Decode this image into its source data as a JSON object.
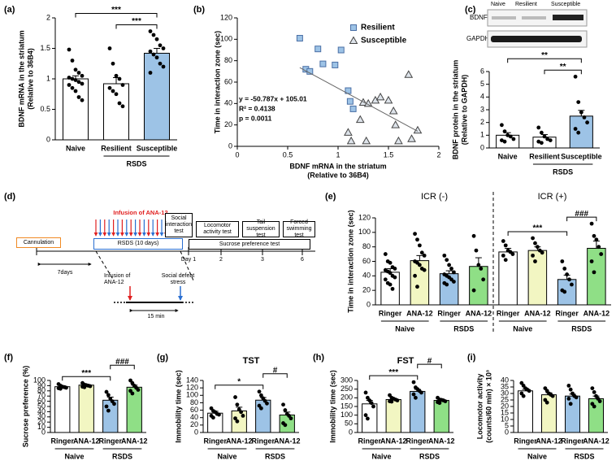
{
  "chart_data": [
    {
      "type": "bar",
      "label": "(a)",
      "ylabel": [
        "BDNF mRNA in the striatum",
        "(Relative to 36B4)"
      ],
      "categories": [
        "Naive",
        "Resilient",
        "Susceptible"
      ],
      "values": [
        1.0,
        0.92,
        1.42
      ],
      "errors": [
        0.05,
        0.1,
        0.08
      ],
      "colors": [
        "#ffffff",
        "#ffffff",
        "#9dc3e6"
      ],
      "points": [
        [
          1.48,
          1.3,
          1.15,
          1.1,
          1.05,
          1.02,
          1.0,
          0.98,
          0.95,
          0.92,
          0.9,
          0.85,
          0.8,
          0.7,
          0.65
        ],
        [
          1.5,
          1.25,
          1.05,
          1.0,
          0.9,
          0.85,
          0.8,
          0.75,
          0.6,
          0.55
        ],
        [
          1.78,
          1.72,
          1.65,
          1.55,
          1.5,
          1.45,
          1.4,
          1.35,
          1.25,
          1.2,
          1.1
        ]
      ],
      "ylim": [
        0,
        2
      ],
      "yticks": [
        0,
        0.5,
        1,
        1.5,
        2
      ],
      "groups": [
        {
          "label": "RSDS",
          "span": [
            1,
            2
          ]
        }
      ],
      "brackets": [
        {
          "span": [
            1,
            2
          ],
          "label": "***"
        },
        {
          "span": [
            0,
            2
          ],
          "label": "***"
        }
      ]
    },
    {
      "type": "scatter",
      "label": "(b)",
      "ylabel": [
        "Time in interaction zone (sec)"
      ],
      "xlabel": [
        "BDNF mRNA in the striatum",
        "(Relative to 36B4)"
      ],
      "series": [
        {
          "name": "Resilient",
          "marker": "square",
          "color": "#9dc3e6",
          "x": [
            0.62,
            0.68,
            0.72,
            0.8,
            0.85,
            0.97,
            1.03,
            1.1,
            1.12,
            1.15
          ],
          "y": [
            101,
            72,
            70,
            91,
            77,
            76,
            90,
            52,
            42,
            35
          ]
        },
        {
          "name": "Susceptible",
          "marker": "triangle",
          "color": "#dde3ea",
          "x": [
            1.1,
            1.13,
            1.22,
            1.25,
            1.3,
            1.37,
            1.42,
            1.5,
            1.55,
            1.57,
            1.6,
            1.7,
            1.73,
            1.79,
            1.28
          ],
          "y": [
            13,
            5,
            25,
            41,
            40,
            43,
            46,
            43,
            33,
            20,
            5,
            67,
            7,
            15,
            5
          ]
        }
      ],
      "fit": {
        "slope": -50.787,
        "intercept": 105.01
      },
      "annotations": [
        "y = -50.787x + 105.01",
        "R² = 0.4138",
        "p = 0.0011"
      ],
      "xlim": [
        0,
        2
      ],
      "xticks": [
        0,
        0.5,
        1,
        1.5,
        2
      ],
      "ylim": [
        0,
        120
      ],
      "yticks": [
        0,
        20,
        40,
        60,
        80,
        100,
        120
      ]
    },
    {
      "type": "bar",
      "label": "(c)",
      "ylabel": [
        "BDNF protein in the striatum",
        "(Relative to GAPDH)"
      ],
      "blot": {
        "rows": [
          "BDNF",
          "GAPDH"
        ],
        "lanes": [
          "Naive",
          "Resilient",
          "Susceptible"
        ]
      },
      "categories": [
        "Naive",
        "Resilient",
        "Susceptible"
      ],
      "values": [
        1.0,
        0.85,
        2.5
      ],
      "errors": [
        0.2,
        0.2,
        0.45
      ],
      "colors": [
        "#ffffff",
        "#ffffff",
        "#9dc3e6"
      ],
      "points": [
        [
          1.8,
          1.3,
          1.0,
          0.9,
          0.7,
          0.6,
          0.5
        ],
        [
          1.6,
          1.2,
          0.9,
          0.7,
          0.6,
          0.5,
          0.4
        ],
        [
          5.6,
          3.6,
          2.8,
          2.4,
          2.0,
          1.5,
          1.2
        ]
      ],
      "ylim": [
        0,
        6
      ],
      "yticks": [
        0,
        1,
        2,
        3,
        4,
        5,
        6
      ],
      "groups": [
        {
          "label": "RSDS",
          "span": [
            1,
            2
          ]
        }
      ],
      "brackets": [
        {
          "span": [
            1,
            2
          ],
          "label": "**"
        },
        {
          "span": [
            0,
            2
          ],
          "label": "**"
        }
      ]
    },
    {
      "type": "bar",
      "label": "(e)",
      "ylabel": [
        "Time in interaction zone (sec)"
      ],
      "categories": [
        "Ringer",
        "ANA-12",
        "Ringer",
        "ANA-12",
        "Ringer",
        "ANA-12",
        "Ringer",
        "ANA-12"
      ],
      "values": [
        45,
        61,
        43,
        53,
        73,
        75,
        35,
        78
      ],
      "errors": [
        5,
        7,
        4,
        12,
        5,
        5,
        6,
        10
      ],
      "colors": [
        "#ffffff",
        "#f2f6c2",
        "#9dc3e6",
        "#8fdf86",
        "#ffffff",
        "#f2f6c2",
        "#9dc3e6",
        "#8fdf86"
      ],
      "points": [
        [
          70,
          60,
          58,
          52,
          50,
          48,
          46,
          44,
          40,
          38,
          35,
          30,
          28,
          22
        ],
        [
          98,
          90,
          82,
          72,
          68,
          60,
          58,
          55,
          50,
          48,
          40,
          25
        ],
        [
          68,
          62,
          55,
          50,
          45,
          42,
          40,
          38,
          35,
          32,
          30,
          28
        ],
        [
          95,
          75,
          55,
          50,
          35,
          20
        ],
        [
          88,
          82,
          75,
          73,
          70,
          68,
          62
        ],
        [
          92,
          85,
          80,
          75,
          72,
          68,
          60
        ],
        [
          60,
          50,
          42,
          35,
          28,
          20,
          18
        ],
        [
          112,
          95,
          90,
          80,
          70,
          60,
          45
        ]
      ],
      "ylim": [
        0,
        120
      ],
      "yticks": [
        0,
        20,
        40,
        60,
        80,
        100,
        120
      ],
      "sections": [
        {
          "label": "ICR (-)",
          "span": [
            0,
            3
          ]
        },
        {
          "label": "ICR (+)",
          "span": [
            4,
            7
          ]
        }
      ],
      "groups": [
        {
          "label": "Naive",
          "span": [
            0,
            1
          ]
        },
        {
          "label": "RSDS",
          "span": [
            2,
            3
          ]
        },
        {
          "label": "Naive",
          "span": [
            4,
            5
          ]
        },
        {
          "label": "RSDS",
          "span": [
            6,
            7
          ]
        }
      ],
      "brackets": [
        {
          "span": [
            4,
            6
          ],
          "label": "***"
        },
        {
          "span": [
            6,
            7
          ],
          "label": "###"
        }
      ]
    },
    {
      "type": "bar",
      "label": "(f)",
      "ylabel": [
        "Sucrose preference (%)"
      ],
      "categories": [
        "Ringer",
        "ANA-12",
        "Ringer",
        "ANA-12"
      ],
      "values": [
        88,
        91,
        62,
        87
      ],
      "errors": [
        2,
        1.5,
        6,
        4
      ],
      "colors": [
        "#ffffff",
        "#f2f6c2",
        "#9dc3e6",
        "#8fdf86"
      ],
      "points": [
        [
          93,
          90,
          88,
          87,
          86,
          85,
          84
        ],
        [
          95,
          92,
          91,
          90,
          89,
          88,
          87
        ],
        [
          78,
          72,
          65,
          60,
          55,
          50,
          42
        ],
        [
          100,
          95,
          90,
          86,
          82,
          80,
          75
        ]
      ],
      "ylim": [
        0,
        100
      ],
      "yticks": [
        0,
        10,
        20,
        30,
        40,
        50,
        60,
        70,
        80,
        90,
        100
      ],
      "groups": [
        {
          "label": "Naive",
          "span": [
            0,
            1
          ]
        },
        {
          "label": "RSDS",
          "span": [
            2,
            3
          ]
        }
      ],
      "brackets": [
        {
          "span": [
            0,
            2
          ],
          "label": "***"
        },
        {
          "span": [
            2,
            3
          ],
          "label": "###"
        }
      ]
    },
    {
      "type": "bar",
      "label": "(g)",
      "title": "TST",
      "ylabel": [
        "Immobility time (sec)"
      ],
      "categories": [
        "Ringer",
        "ANA-12",
        "Ringer",
        "ANA-12"
      ],
      "values": [
        52,
        58,
        87,
        47
      ],
      "errors": [
        5,
        10,
        7,
        8
      ],
      "colors": [
        "#ffffff",
        "#f2f6c2",
        "#9dc3e6",
        "#8fdf86"
      ],
      "points": [
        [
          65,
          58,
          55,
          50,
          48,
          45,
          40
        ],
        [
          95,
          75,
          62,
          55,
          45,
          38,
          30
        ],
        [
          110,
          100,
          92,
          85,
          78,
          72,
          65
        ],
        [
          75,
          60,
          50,
          45,
          38,
          25,
          20
        ]
      ],
      "ylim": [
        0,
        140
      ],
      "yticks": [
        0,
        20,
        40,
        60,
        80,
        100,
        120,
        140
      ],
      "groups": [
        {
          "label": "Naive",
          "span": [
            0,
            1
          ]
        },
        {
          "label": "RSDS",
          "span": [
            2,
            3
          ]
        }
      ],
      "brackets": [
        {
          "span": [
            0,
            2
          ],
          "label": "*"
        },
        {
          "span": [
            2,
            3
          ],
          "label": "#"
        }
      ]
    },
    {
      "type": "bar",
      "label": "(h)",
      "title": "FST",
      "ylabel": [
        "Immobility time (sec)"
      ],
      "categories": [
        "Ringer",
        "ANA-12",
        "Ringer",
        "ANA-12"
      ],
      "values": [
        165,
        190,
        237,
        185
      ],
      "errors": [
        20,
        7,
        12,
        5
      ],
      "colors": [
        "#ffffff",
        "#f2f6c2",
        "#9dc3e6",
        "#8fdf86"
      ],
      "points": [
        [
          230,
          200,
          185,
          170,
          150,
          100,
          80
        ],
        [
          215,
          200,
          195,
          190,
          185,
          180,
          178
        ],
        [
          290,
          260,
          250,
          240,
          230,
          220,
          200
        ],
        [
          200,
          190,
          188,
          185,
          180,
          175,
          170
        ]
      ],
      "ylim": [
        0,
        300
      ],
      "yticks": [
        0,
        50,
        100,
        150,
        200,
        250,
        300
      ],
      "groups": [
        {
          "label": "Naive",
          "span": [
            0,
            1
          ]
        },
        {
          "label": "RSDS",
          "span": [
            2,
            3
          ]
        }
      ],
      "brackets": [
        {
          "span": [
            0,
            2
          ],
          "label": "***"
        },
        {
          "span": [
            2,
            3
          ],
          "label": "#"
        }
      ]
    },
    {
      "type": "bar",
      "label": "(i)",
      "ylabel": [
        "Locomotor activity",
        "(counts/60 min) × 10³"
      ],
      "categories": [
        "Ringer",
        "ANA-12",
        "Ringer",
        "ANA-12"
      ],
      "values": [
        32,
        29,
        28,
        26
      ],
      "errors": [
        1.2,
        1.5,
        1.5,
        2
      ],
      "colors": [
        "#ffffff",
        "#f2f6c2",
        "#9dc3e6",
        "#8fdf86"
      ],
      "points": [
        [
          38,
          36,
          34,
          33,
          32,
          30,
          28
        ],
        [
          34,
          32,
          30,
          29,
          28,
          25,
          23
        ],
        [
          36,
          33,
          30,
          28,
          27,
          26,
          22
        ],
        [
          34,
          31,
          28,
          26,
          24,
          22,
          20
        ]
      ],
      "ylim": [
        0,
        40
      ],
      "yticks": [
        0,
        5,
        10,
        15,
        20,
        25,
        30,
        35,
        40
      ],
      "groups": [
        {
          "label": "Naive",
          "span": [
            0,
            1
          ]
        },
        {
          "label": "RSDS",
          "span": [
            2,
            3
          ]
        }
      ],
      "brackets": []
    }
  ],
  "diagram": {
    "label": "(d)",
    "cannulation": "Cannulation",
    "interval": "7days",
    "infusion": "Infusion of ANA-12",
    "rsds": "RSDS (10 days)",
    "tests": [
      "Social interaction test",
      "Locomotor activity test",
      "Tail suspension test",
      "Forced swimming test"
    ],
    "sucrose": "Sucrose preference test",
    "days": [
      "Day 1",
      "2",
      "3",
      "6"
    ],
    "inset": {
      "infusion": "Infusion of ANA-12",
      "defeat": "Social defeat stress",
      "duration": "15 min"
    }
  }
}
